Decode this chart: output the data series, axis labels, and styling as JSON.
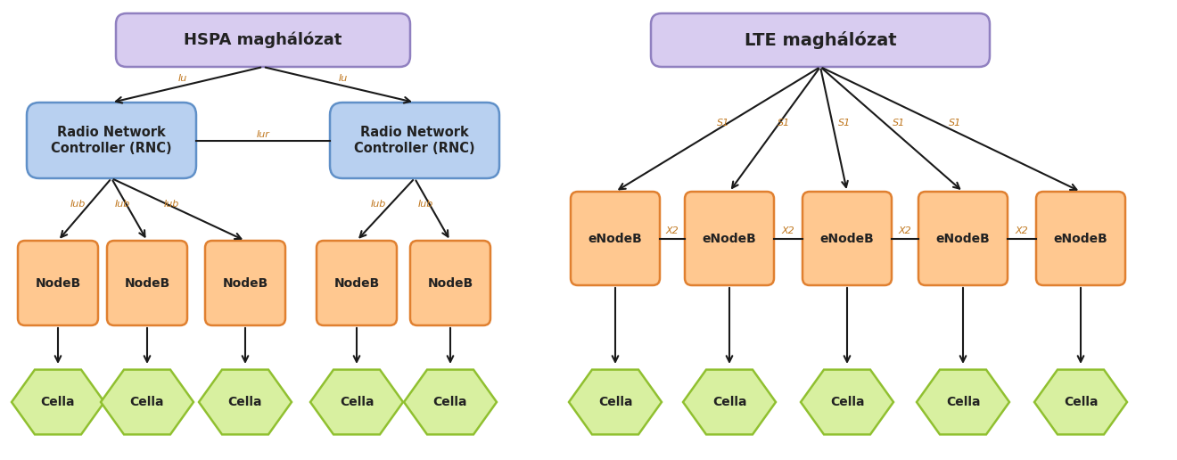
{
  "bg_color": "#ffffff",
  "purple_fill_top": "#d8ccf0",
  "purple_fill_bot": "#c0a8e8",
  "purple_border": "#9080c0",
  "blue_fill": "#b8d0f0",
  "blue_border": "#6090c8",
  "orange_fill_top": "#ffc890",
  "orange_fill_bot": "#ff9040",
  "orange_border": "#e08030",
  "green_fill": "#d8f0a0",
  "green_border": "#90c030",
  "arrow_color": "#1a1a1a",
  "label_color": "#c07820",
  "text_color": "#222222",
  "hspa_title": "HSPA maghálózat",
  "lte_title": "LTE maghálózat",
  "rnc_text": "Radio Network\nController (RNC)",
  "nodeb_text": "NodeB",
  "enodeb_text": "eNodeB",
  "cella_text": "Cella"
}
